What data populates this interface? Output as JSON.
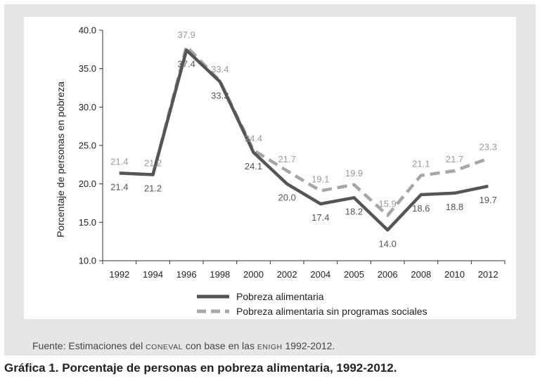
{
  "chart_data": {
    "type": "line",
    "categories": [
      "1992",
      "1994",
      "1996",
      "1998",
      "2000",
      "2002",
      "2004",
      "2005",
      "2006",
      "2008",
      "2010",
      "2012"
    ],
    "ylabel": "Porcentaje de personas en pobreza",
    "ylim": [
      10.0,
      40.0
    ],
    "yticks": [
      "10.0",
      "15.0",
      "20.0",
      "25.0",
      "30.0",
      "35.0",
      "40.0"
    ],
    "grid": false,
    "legend_position": "bottom",
    "series": [
      {
        "name": "Pobreza alimentaria",
        "values": [
          21.4,
          21.2,
          37.4,
          33.3,
          24.1,
          20.0,
          17.4,
          18.2,
          14.0,
          18.6,
          18.8,
          19.7
        ],
        "labels": [
          "21.4",
          "21.2",
          "37.4",
          "33.3",
          "24.1",
          "20.0",
          "17.4",
          "18.2",
          "14.0",
          "18.6",
          "18.8",
          "19.7"
        ],
        "color": "#555555",
        "style": "solid"
      },
      {
        "name": "Pobreza alimentaria sin programas sociales",
        "values": [
          21.4,
          21.2,
          37.9,
          33.4,
          24.4,
          21.7,
          19.1,
          19.9,
          15.9,
          21.1,
          21.7,
          23.3
        ],
        "labels": [
          "21.4",
          "21.2",
          "37.9",
          "33.4",
          "24.4",
          "21.7",
          "19.1",
          "19.9",
          "15.9",
          "21.1",
          "21.7",
          "23.3"
        ],
        "color": "#a6a6a6",
        "style": "dashed"
      }
    ]
  },
  "source": {
    "prefix": "Fuente: Estimaciones del ",
    "org1": "coneval",
    "middle": " con base en las ",
    "org2": "enigh",
    "suffix": " 1992-2012."
  },
  "caption": "Gráfica 1. Porcentaje de personas en pobreza alimentaria, 1992-2012."
}
